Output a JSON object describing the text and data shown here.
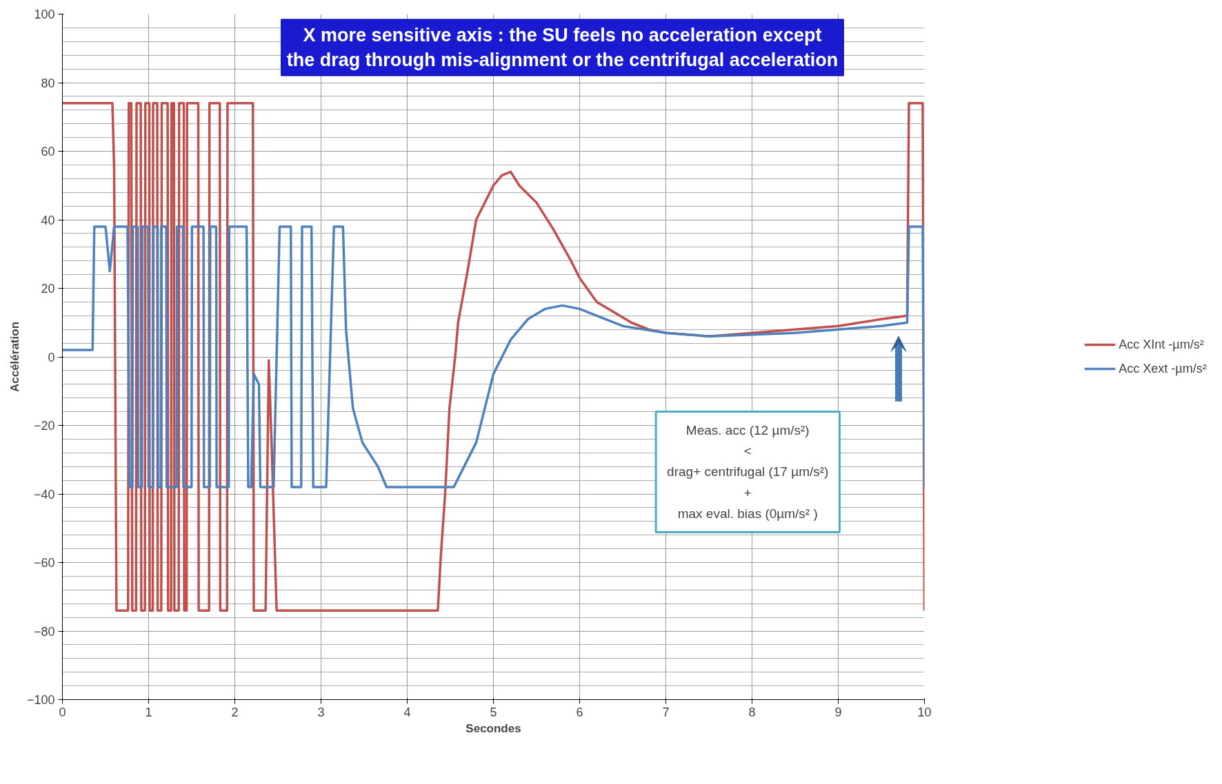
{
  "chart_data": {
    "type": "line",
    "title": "X more sensitive axis : the SU feels no acceleration except\nthe drag through mis-alignment or the centrifugal acceleration",
    "xlabel": "Secondes",
    "ylabel": "Accélération",
    "xlim": [
      0,
      10
    ],
    "ylim": [
      -100,
      100
    ],
    "xticks": [
      0,
      1,
      2,
      3,
      4,
      5,
      6,
      7,
      8,
      9,
      10
    ],
    "yticks": [
      -100,
      -80,
      -60,
      -40,
      -20,
      0,
      20,
      40,
      60,
      80,
      100
    ],
    "grid": true,
    "legend": "right",
    "marker": "none",
    "line_style": "solid",
    "annotations": [
      "Meas. acc (12 µm/s²)\n<\ndrag+ centrifugal (17 µm/s²)\n+\nmax eval. bias (0µm/s² )"
    ],
    "series": [
      {
        "name": "Acc XInt -µm/s²",
        "color": "#c0504d",
        "x": [
          0,
          0.58,
          0.6,
          0.627,
          0.762,
          0.77,
          0.799,
          0.81,
          0.854,
          0.86,
          0.909,
          0.915,
          0.957,
          0.962,
          1.008,
          1.012,
          1.048,
          1.052,
          1.1,
          1.105,
          1.147,
          1.152,
          1.221,
          1.226,
          1.261,
          1.266,
          1.294,
          1.299,
          1.349,
          1.354,
          1.408,
          1.413,
          1.441,
          1.446,
          1.576,
          1.581,
          1.701,
          1.706,
          1.826,
          1.831,
          1.91,
          1.915,
          2.21,
          2.22,
          2.357,
          2.394,
          2.43,
          2.485,
          4.355,
          4.39,
          4.44,
          4.49,
          4.56,
          4.59,
          4.7,
          4.8,
          5.0,
          5.1,
          5.2,
          5.3,
          5.5,
          5.7,
          5.9,
          6.0,
          6.2,
          6.4,
          6.6,
          6.8,
          7.0,
          7.5,
          8.0,
          8.5,
          9.0,
          9.5,
          9.8,
          9.82,
          9.98,
          10
        ],
        "values": [
          74,
          74,
          55,
          -74,
          -74,
          74,
          74,
          -74,
          -74,
          74,
          74,
          -74,
          -74,
          74,
          74,
          -74,
          -74,
          74,
          74,
          -74,
          -74,
          74,
          74,
          -74,
          -74,
          74,
          74,
          -74,
          -74,
          74,
          74,
          -74,
          -74,
          74,
          74,
          -74,
          -74,
          74,
          74,
          -74,
          -74,
          74,
          74,
          -74,
          -74,
          -1,
          -28,
          -74,
          -74,
          -58,
          -40,
          -15,
          1,
          10,
          25,
          40,
          50,
          53,
          54,
          50,
          45,
          37,
          28,
          23,
          16,
          13,
          10,
          8,
          7,
          6,
          7,
          8,
          9,
          11,
          12,
          74,
          74,
          -74
        ]
      },
      {
        "name": "Acc Xext -µm/s²",
        "color": "#4f81bd",
        "x": [
          0,
          0.35,
          0.37,
          0.5,
          0.55,
          0.6,
          0.63,
          0.755,
          0.78,
          0.812,
          0.817,
          0.874,
          0.879,
          0.922,
          0.927,
          0.995,
          1.0,
          1.051,
          1.056,
          1.105,
          1.11,
          1.142,
          1.147,
          1.205,
          1.21,
          1.325,
          1.33,
          1.399,
          1.404,
          1.498,
          1.503,
          1.637,
          1.642,
          1.71,
          1.715,
          1.784,
          1.789,
          1.93,
          1.935,
          2.137,
          2.156,
          2.19,
          2.22,
          2.28,
          2.296,
          2.45,
          2.52,
          2.65,
          2.66,
          2.77,
          2.78,
          2.89,
          2.91,
          3.06,
          3.15,
          3.255,
          3.29,
          3.37,
          3.48,
          3.66,
          3.76,
          4.54,
          4.6,
          4.8,
          5.0,
          5.2,
          5.4,
          5.6,
          5.8,
          6.0,
          6.2,
          6.5,
          7.0,
          7.5,
          8.0,
          8.5,
          9.0,
          9.5,
          9.8,
          9.82,
          9.98,
          10
        ],
        "values": [
          2,
          2,
          38,
          38,
          25,
          38,
          38,
          38,
          -38,
          -38,
          38,
          38,
          -38,
          -38,
          38,
          38,
          -38,
          -38,
          38,
          38,
          -38,
          -38,
          38,
          38,
          -38,
          -38,
          38,
          38,
          -38,
          -38,
          38,
          38,
          -38,
          -38,
          38,
          38,
          -38,
          -38,
          38,
          38,
          -38,
          -38,
          -5,
          -8,
          -38,
          -38,
          38,
          38,
          -38,
          -38,
          38,
          38,
          -38,
          -38,
          38,
          38,
          8,
          -15,
          -25,
          -32,
          -38,
          -38,
          -35,
          -25,
          -5,
          5,
          11,
          14,
          15,
          14,
          12,
          9,
          7,
          6,
          6.5,
          7,
          8,
          9,
          10,
          38,
          38,
          -38
        ]
      }
    ]
  }
}
